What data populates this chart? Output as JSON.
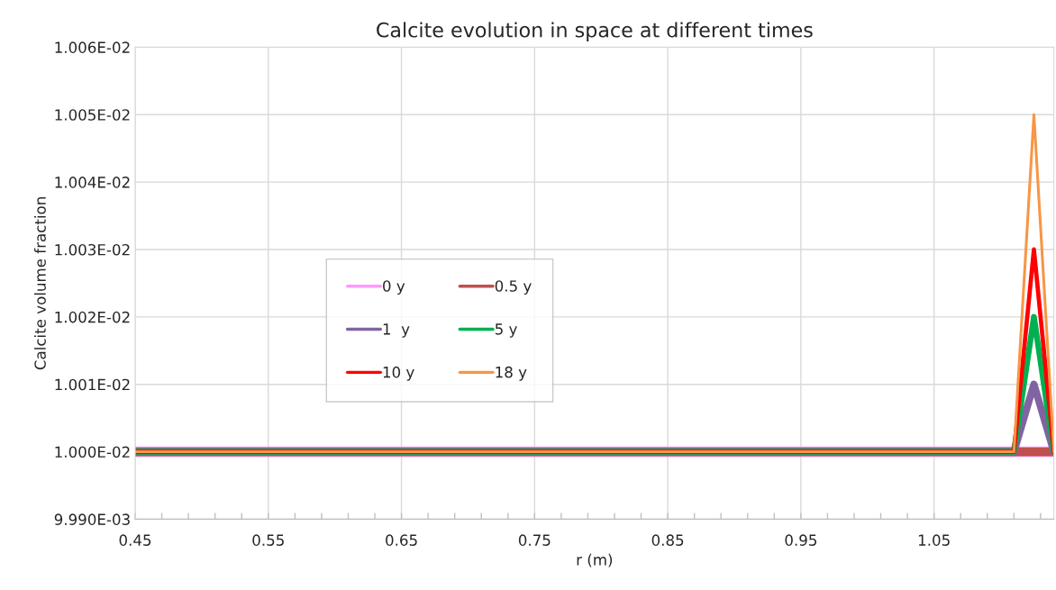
{
  "chart_data": {
    "type": "line",
    "title": "Calcite evolution in space at different times",
    "xlabel": "r (m)",
    "ylabel": "Calcite volume fraction",
    "x": [
      0.45,
      1.11,
      1.125,
      1.14
    ],
    "series": [
      {
        "name": "0 y",
        "color": "#ff99ff",
        "values": [
          0.01,
          0.01,
          0.01,
          0.01
        ]
      },
      {
        "name": "0.5 y",
        "color": "#c0504d",
        "values": [
          0.01,
          0.01,
          0.01,
          0.01
        ]
      },
      {
        "name": "1  y",
        "color": "#8064a2",
        "values": [
          0.01,
          0.01,
          0.01001,
          0.01
        ]
      },
      {
        "name": "5 y",
        "color": "#00b050",
        "values": [
          0.01,
          0.01,
          0.01002,
          0.01
        ]
      },
      {
        "name": "10 y",
        "color": "#ff0000",
        "values": [
          0.01,
          0.01,
          0.01003,
          0.01
        ]
      },
      {
        "name": "18 y",
        "color": "#f79646",
        "values": [
          0.01,
          0.01,
          0.01005,
          0.01
        ]
      }
    ],
    "xlim": [
      0.45,
      1.14
    ],
    "xticks": [
      0.45,
      {
        "value": 0.47,
        "label": null
      },
      {
        "value": 0.49,
        "label": null
      },
      {
        "value": 0.51,
        "label": null
      },
      {
        "value": 0.53,
        "label": null
      },
      0.55,
      {
        "value": 0.57,
        "label": null
      },
      {
        "value": 0.59,
        "label": null
      },
      {
        "value": 0.61,
        "label": null
      },
      {
        "value": 0.63,
        "label": null
      },
      0.65,
      {
        "value": 0.67,
        "label": null
      },
      {
        "value": 0.69,
        "label": null
      },
      {
        "value": 0.71,
        "label": null
      },
      {
        "value": 0.73,
        "label": null
      },
      0.75,
      {
        "value": 0.77,
        "label": null
      },
      {
        "value": 0.79,
        "label": null
      },
      {
        "value": 0.81,
        "label": null
      },
      {
        "value": 0.83,
        "label": null
      },
      0.85,
      {
        "value": 0.87,
        "label": null
      },
      {
        "value": 0.89,
        "label": null
      },
      {
        "value": 0.91,
        "label": null
      },
      {
        "value": 0.93,
        "label": null
      },
      0.95,
      {
        "value": 0.97,
        "label": null
      },
      {
        "value": 0.99,
        "label": null
      },
      {
        "value": 1.01,
        "label": null
      },
      {
        "value": 1.03,
        "label": null
      },
      1.05,
      {
        "value": 1.07,
        "label": null
      },
      {
        "value": 1.09,
        "label": null
      },
      {
        "value": 1.11,
        "label": null
      },
      {
        "value": 1.13,
        "label": null
      }
    ],
    "ylim": [
      0.00999,
      0.01006
    ],
    "yticks": [
      {
        "value": 0.00999,
        "label": "9.990E-03"
      },
      {
        "value": 0.01,
        "label": "1.000E-02"
      },
      {
        "value": 0.01001,
        "label": "1.001E-02"
      },
      {
        "value": 0.01002,
        "label": "1.002E-02"
      },
      {
        "value": 0.01003,
        "label": "1.003E-02"
      },
      {
        "value": 0.01004,
        "label": "1.004E-02"
      },
      {
        "value": 0.01005,
        "label": "1.005E-02"
      },
      {
        "value": 0.01006,
        "label": "1.006E-02"
      }
    ],
    "grid": true,
    "legend": "center left",
    "marker": "none",
    "line_style": "solid"
  }
}
